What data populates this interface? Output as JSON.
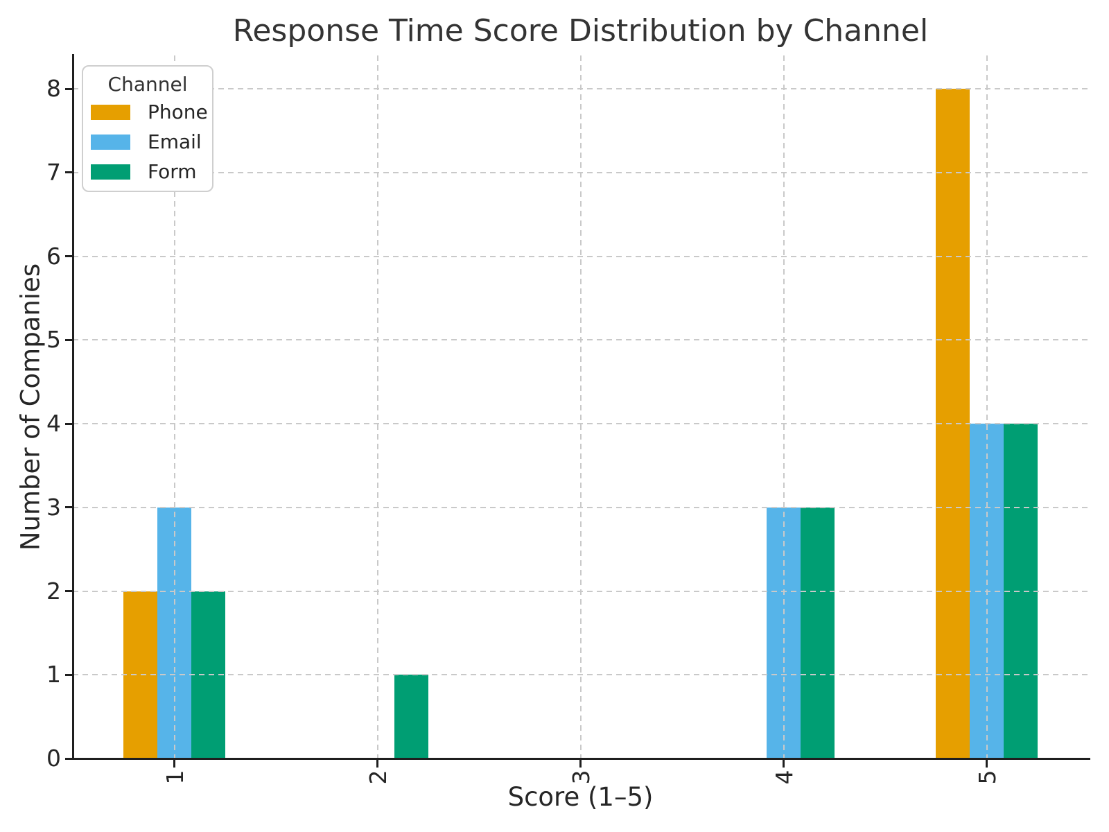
{
  "chart_data": {
    "type": "bar",
    "title": "Response Time Score Distribution by Channel",
    "xlabel": "Score (1–5)",
    "ylabel": "Number of Companies",
    "legend_title": "Channel",
    "legend_position": "upper left",
    "grid": true,
    "grid_style": "dashed",
    "categories": [
      "1",
      "2",
      "3",
      "4",
      "5"
    ],
    "series": [
      {
        "name": "Phone",
        "color": "#E69F00",
        "values": [
          2,
          0,
          0,
          0,
          8
        ]
      },
      {
        "name": "Email",
        "color": "#56B4E9",
        "values": [
          3,
          0,
          0,
          3,
          4
        ]
      },
      {
        "name": "Form",
        "color": "#009E73",
        "values": [
          2,
          1,
          0,
          3,
          4
        ]
      }
    ],
    "ylim": [
      0,
      8
    ],
    "yticks": [
      0,
      1,
      2,
      3,
      4,
      5,
      6,
      7,
      8
    ],
    "xticks_rotation_deg": 90
  }
}
